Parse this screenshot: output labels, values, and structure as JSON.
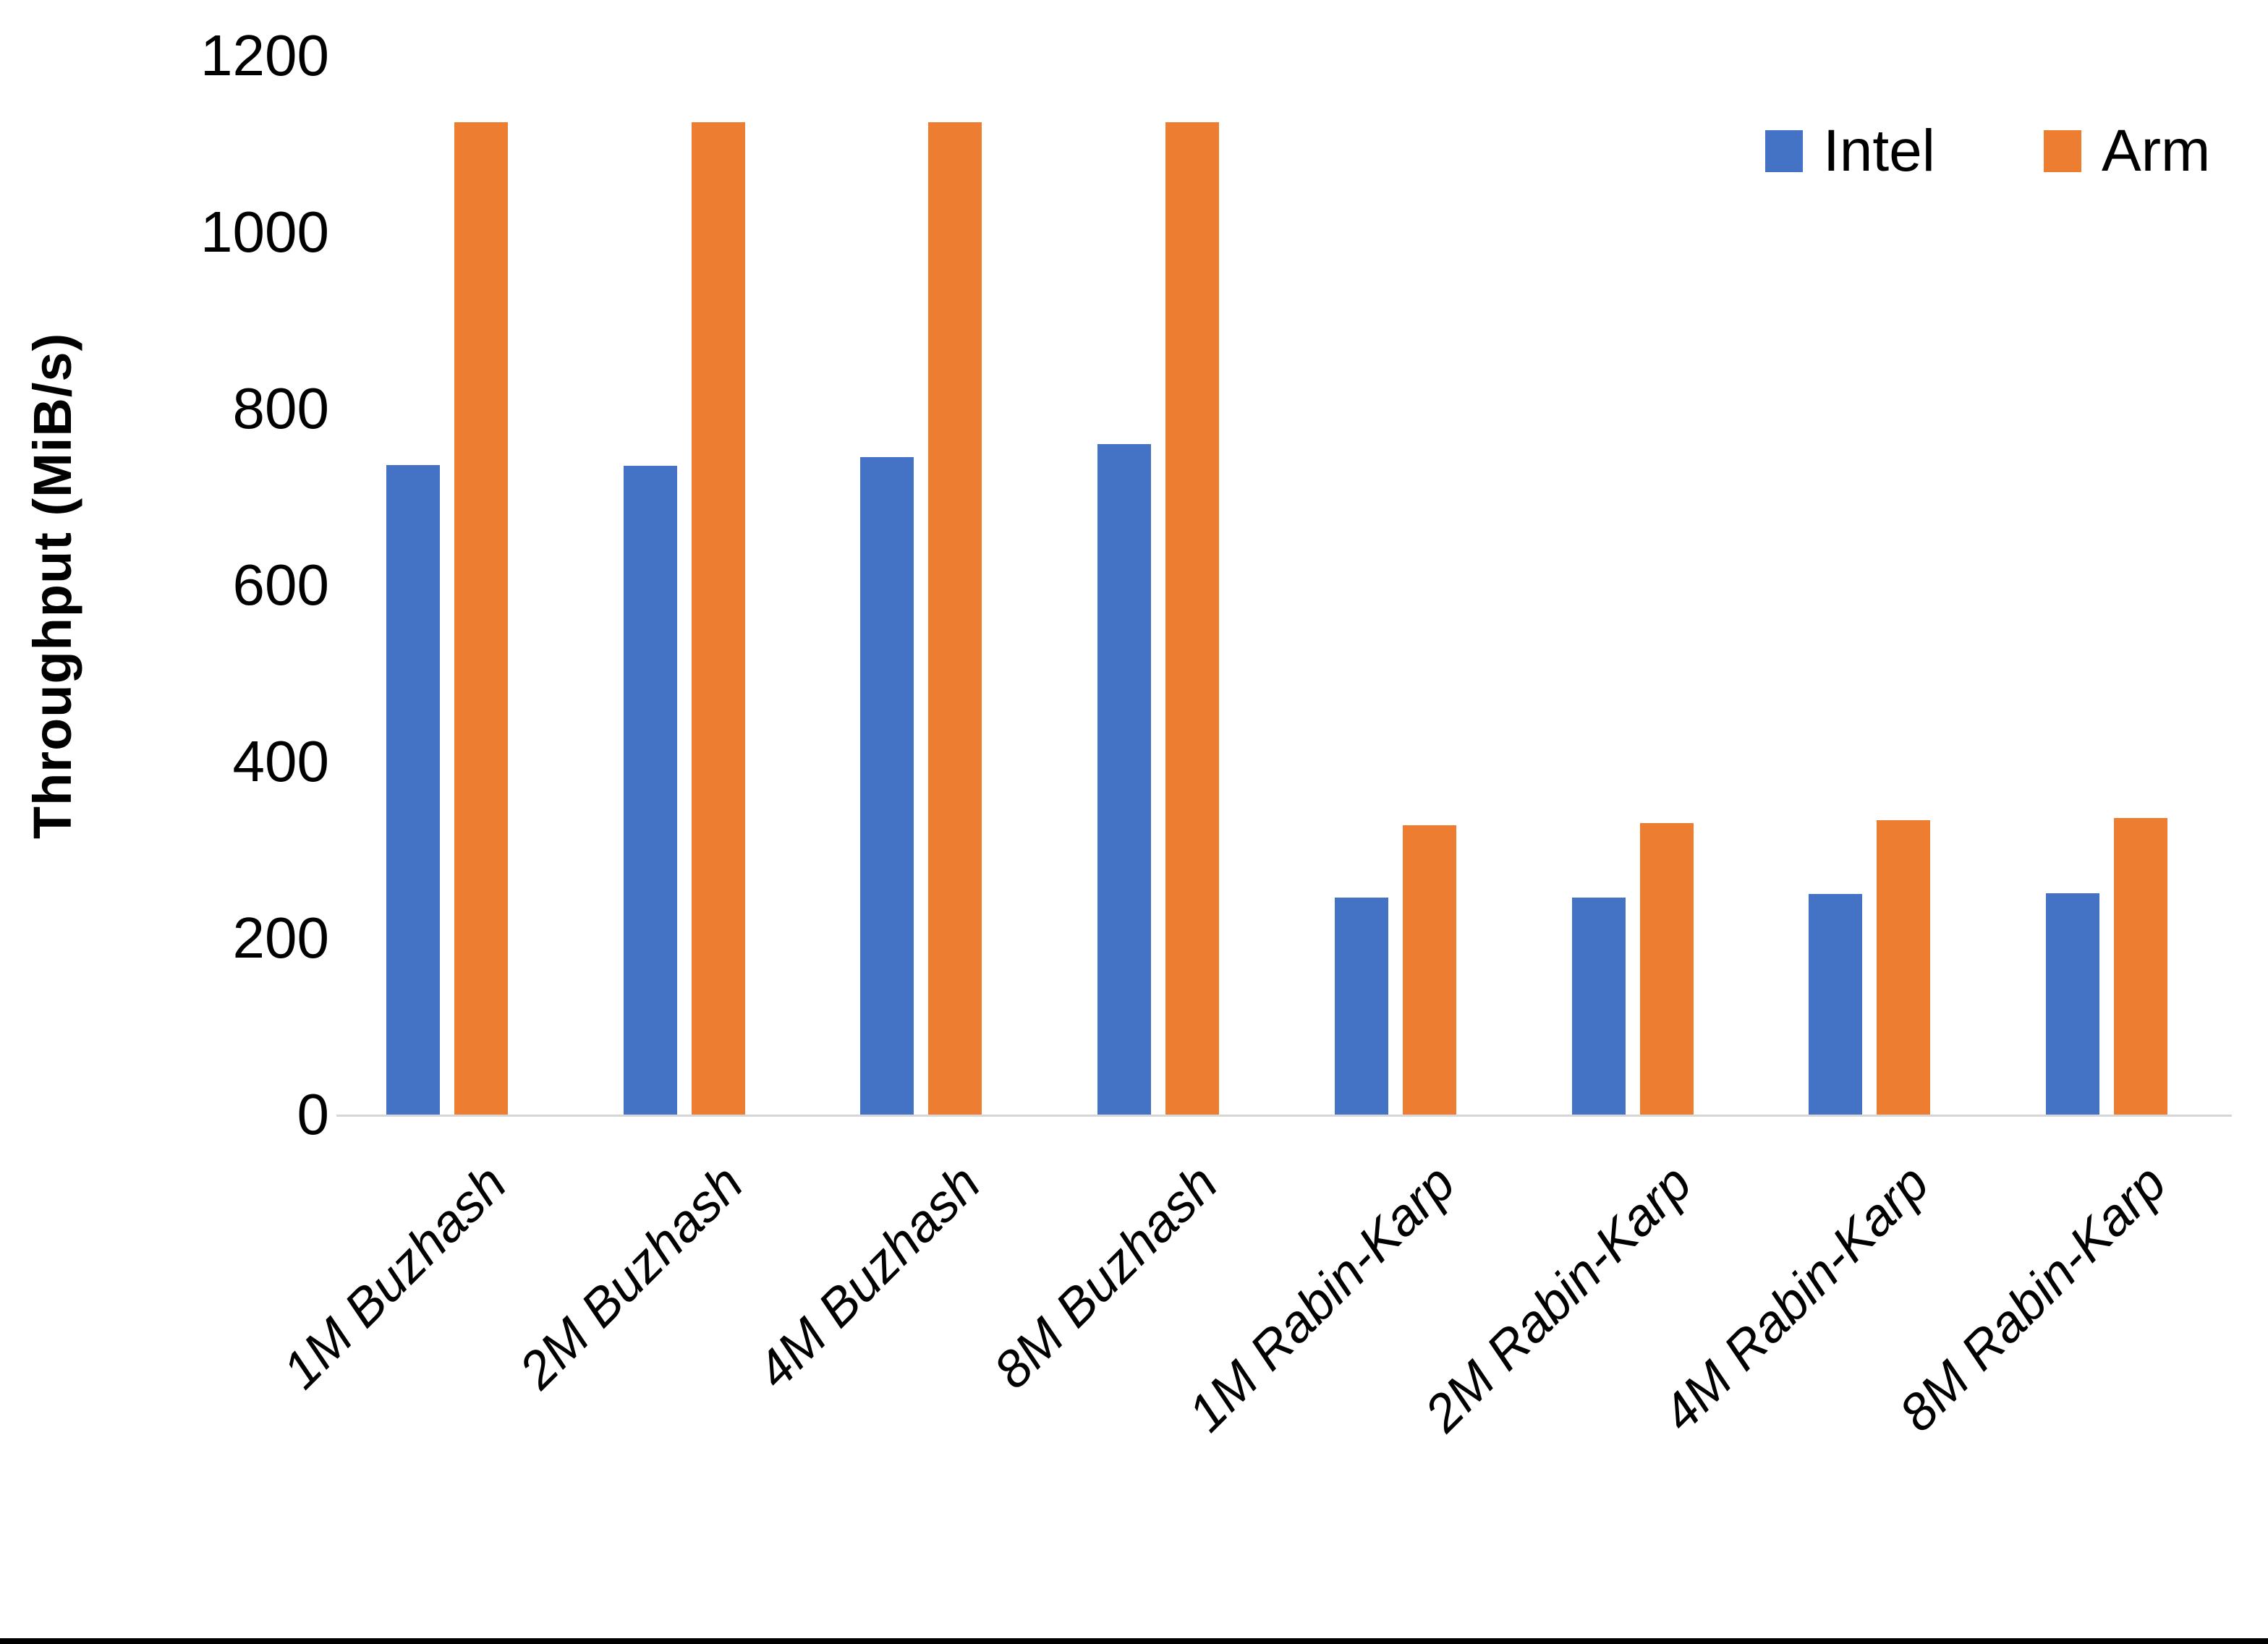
{
  "chart_data": {
    "type": "bar",
    "title": "",
    "ylabel": "Throughput (MiB/s)",
    "xlabel": "",
    "ylim": [
      0,
      1200
    ],
    "ytick_step": 200,
    "y_tick_labels": [
      "0",
      "200",
      "400",
      "600",
      "800",
      "1000",
      "1200"
    ],
    "grid": false,
    "legend_position": "top-right",
    "categories": [
      "1M Buzhash",
      "2M Buzhash",
      "4M Buzhash",
      "8M Buzhash",
      "1M Rabin-Karp",
      "2M Rabin-Karp",
      "4M Rabin-Karp",
      "8M Rabin-Karp"
    ],
    "series": [
      {
        "name": "Intel",
        "color": "#4472C4",
        "values": [
          736,
          735,
          745,
          760,
          246,
          246,
          250,
          251
        ]
      },
      {
        "name": "Arm",
        "color": "#ED7D31",
        "values": [
          1125,
          1125,
          1125,
          1125,
          328,
          330,
          334,
          336
        ]
      }
    ]
  },
  "colors": {
    "axis_line": "#d6d6d6",
    "text": "#000000",
    "bottom_border": "#000000"
  }
}
